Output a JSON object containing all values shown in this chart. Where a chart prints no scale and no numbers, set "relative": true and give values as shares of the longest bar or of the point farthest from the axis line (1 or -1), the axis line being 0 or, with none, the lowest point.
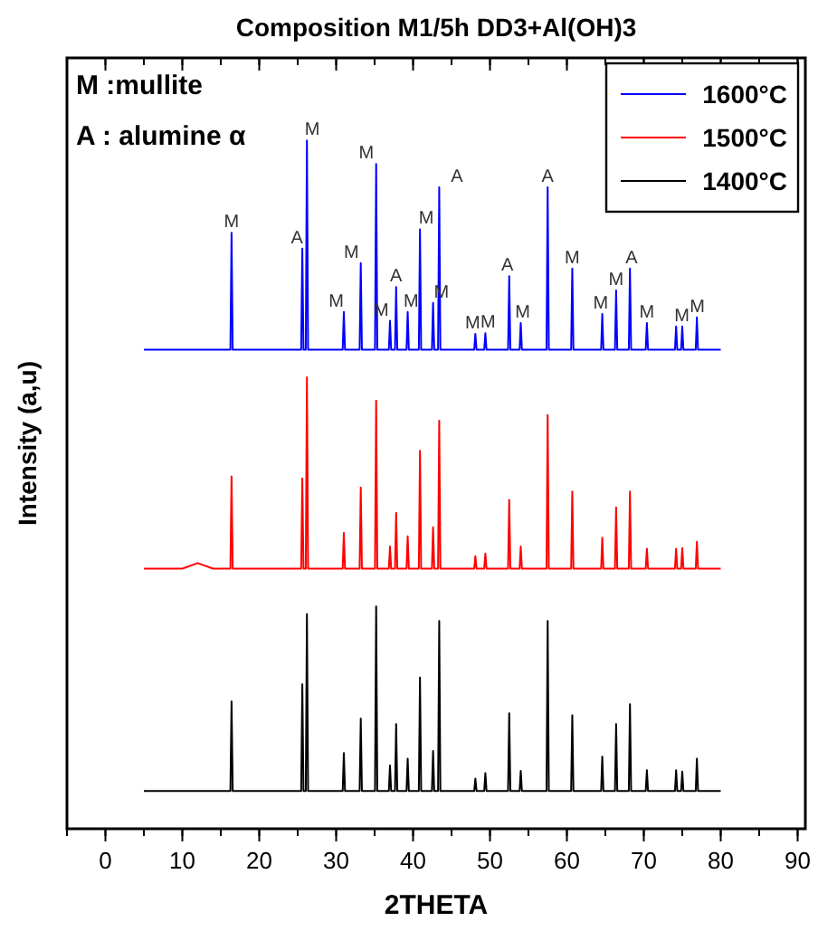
{
  "chart_data": {
    "type": "line",
    "title": "Composition M1/5h DD3+Al(OH)3",
    "xlabel": "2THETA",
    "ylabel": "Intensity (a,u)",
    "relative": true,
    "xlim": [
      -5,
      91
    ],
    "xticks": [
      0,
      10,
      20,
      30,
      40,
      50,
      60,
      70,
      80,
      90
    ],
    "grid": false,
    "legend": "top right",
    "marker": "none",
    "line_style": "solid",
    "x": [
      5,
      10,
      12,
      14,
      16.25,
      16.4,
      16.55,
      25.45,
      25.6,
      25.75,
      26.05,
      26.2,
      26.35,
      30.85,
      31,
      31.15,
      33.05,
      33.2,
      33.35,
      35.05,
      35.2,
      35.35,
      36.85,
      37,
      37.15,
      37.65,
      37.8,
      37.95,
      39.15,
      39.3,
      39.45,
      40.75,
      40.9,
      41.05,
      42.45,
      42.6,
      42.75,
      43.25,
      43.4,
      43.55,
      47.95,
      48.1,
      48.25,
      49.25,
      49.4,
      49.55,
      52.35,
      52.5,
      52.65,
      53.85,
      54,
      54.15,
      57.35,
      57.5,
      57.65,
      60.55,
      60.7,
      60.85,
      64.45,
      64.6,
      64.75,
      66.25,
      66.4,
      66.55,
      68.05,
      68.2,
      68.35,
      70.25,
      70.4,
      70.55,
      74.05,
      74.2,
      74.35,
      74.85,
      75,
      75.15,
      76.75,
      76.9,
      77.05,
      80
    ],
    "series": [
      {
        "name": "1600°C",
        "color": "#0000ff",
        "values": [
          0.696,
          0.696,
          0.696,
          0.696,
          0.696,
          0.866,
          0.696,
          0.696,
          0.843,
          0.696,
          0.696,
          1,
          0.696,
          0.696,
          0.751,
          0.696,
          0.696,
          0.822,
          0.696,
          0.696,
          0.966,
          0.696,
          0.696,
          0.738,
          0.696,
          0.696,
          0.787,
          0.696,
          0.696,
          0.751,
          0.696,
          0.696,
          0.871,
          0.696,
          0.696,
          0.764,
          0.696,
          0.696,
          0.932,
          0.696,
          0.696,
          0.719,
          0.696,
          0.696,
          0.72,
          0.696,
          0.696,
          0.803,
          0.696,
          0.696,
          0.735,
          0.696,
          0.696,
          0.932,
          0.696,
          0.696,
          0.814,
          0.696,
          0.696,
          0.748,
          0.696,
          0.696,
          0.782,
          0.696,
          0.696,
          0.814,
          0.696,
          0.696,
          0.735,
          0.696,
          0.696,
          0.73,
          0.696,
          0.696,
          0.73,
          0.696,
          0.696,
          0.743,
          0.696,
          0.696
        ]
      },
      {
        "name": "1500°C",
        "color": "#ff0000",
        "values": [
          0.378,
          0.378,
          0.386,
          0.378,
          0.378,
          0.512,
          0.378,
          0.378,
          0.509,
          0.378,
          0.378,
          0.656,
          0.378,
          0.378,
          0.43,
          0.378,
          0.378,
          0.496,
          0.378,
          0.378,
          0.622,
          0.378,
          0.378,
          0.41,
          0.378,
          0.378,
          0.459,
          0.378,
          0.378,
          0.425,
          0.378,
          0.378,
          0.549,
          0.378,
          0.378,
          0.438,
          0.378,
          0.378,
          0.593,
          0.378,
          0.378,
          0.396,
          0.378,
          0.378,
          0.4,
          0.378,
          0.378,
          0.478,
          0.378,
          0.378,
          0.41,
          0.378,
          0.378,
          0.601,
          0.378,
          0.378,
          0.49,
          0.378,
          0.378,
          0.423,
          0.378,
          0.378,
          0.467,
          0.378,
          0.378,
          0.49,
          0.378,
          0.378,
          0.407,
          0.378,
          0.378,
          0.407,
          0.378,
          0.378,
          0.408,
          0.378,
          0.378,
          0.417,
          0.378,
          0.378
        ]
      },
      {
        "name": "1400°C",
        "color": "#000000",
        "values": [
          0.055,
          0.055,
          0.055,
          0.055,
          0.055,
          0.185,
          0.055,
          0.055,
          0.21,
          0.055,
          0.055,
          0.312,
          0.055,
          0.055,
          0.11,
          0.055,
          0.055,
          0.16,
          0.055,
          0.055,
          0.323,
          0.055,
          0.055,
          0.092,
          0.055,
          0.055,
          0.152,
          0.055,
          0.055,
          0.102,
          0.055,
          0.055,
          0.22,
          0.055,
          0.055,
          0.113,
          0.055,
          0.055,
          0.302,
          0.055,
          0.055,
          0.073,
          0.055,
          0.055,
          0.081,
          0.055,
          0.055,
          0.168,
          0.055,
          0.055,
          0.084,
          0.055,
          0.055,
          0.302,
          0.055,
          0.055,
          0.165,
          0.055,
          0.055,
          0.105,
          0.055,
          0.055,
          0.152,
          0.055,
          0.055,
          0.181,
          0.055,
          0.055,
          0.085,
          0.055,
          0.055,
          0.085,
          0.055,
          0.055,
          0.083,
          0.055,
          0.055,
          0.102,
          0.055,
          0.055
        ]
      }
    ],
    "annotations": [
      "M :mullite",
      "A : alumine α",
      {
        "text": "M",
        "x": 16.4,
        "y": 0.866
      },
      {
        "text": "A",
        "x": 25.6,
        "y": 0.843
      },
      {
        "text": "M",
        "x": 26.2,
        "y": 1
      },
      {
        "text": "M",
        "x": 31,
        "y": 0.751
      },
      {
        "text": "M",
        "x": 33.2,
        "y": 0.822
      },
      {
        "text": "M",
        "x": 35.2,
        "y": 0.966
      },
      {
        "text": "M",
        "x": 37,
        "y": 0.738
      },
      {
        "text": "A",
        "x": 37.8,
        "y": 0.787
      },
      {
        "text": "M",
        "x": 39.3,
        "y": 0.751
      },
      {
        "text": "M",
        "x": 40.9,
        "y": 0.871
      },
      {
        "text": "M",
        "x": 42.6,
        "y": 0.764
      },
      {
        "text": "A",
        "x": 43.4,
        "y": 0.932
      },
      {
        "text": "M",
        "x": 48.1,
        "y": 0.719
      },
      {
        "text": "M",
        "x": 49.4,
        "y": 0.72
      },
      {
        "text": "A",
        "x": 52.5,
        "y": 0.803
      },
      {
        "text": "M",
        "x": 54,
        "y": 0.735
      },
      {
        "text": "A",
        "x": 57.5,
        "y": 0.932
      },
      {
        "text": "M",
        "x": 60.7,
        "y": 0.814
      },
      {
        "text": "M",
        "x": 64.6,
        "y": 0.748
      },
      {
        "text": "M",
        "x": 66.4,
        "y": 0.782
      },
      {
        "text": "A",
        "x": 68.2,
        "y": 0.814
      },
      {
        "text": "M",
        "x": 70.4,
        "y": 0.735
      },
      {
        "text": "M",
        "x": 75,
        "y": 0.73
      },
      {
        "text": "M",
        "x": 76.9,
        "y": 0.743
      }
    ]
  }
}
